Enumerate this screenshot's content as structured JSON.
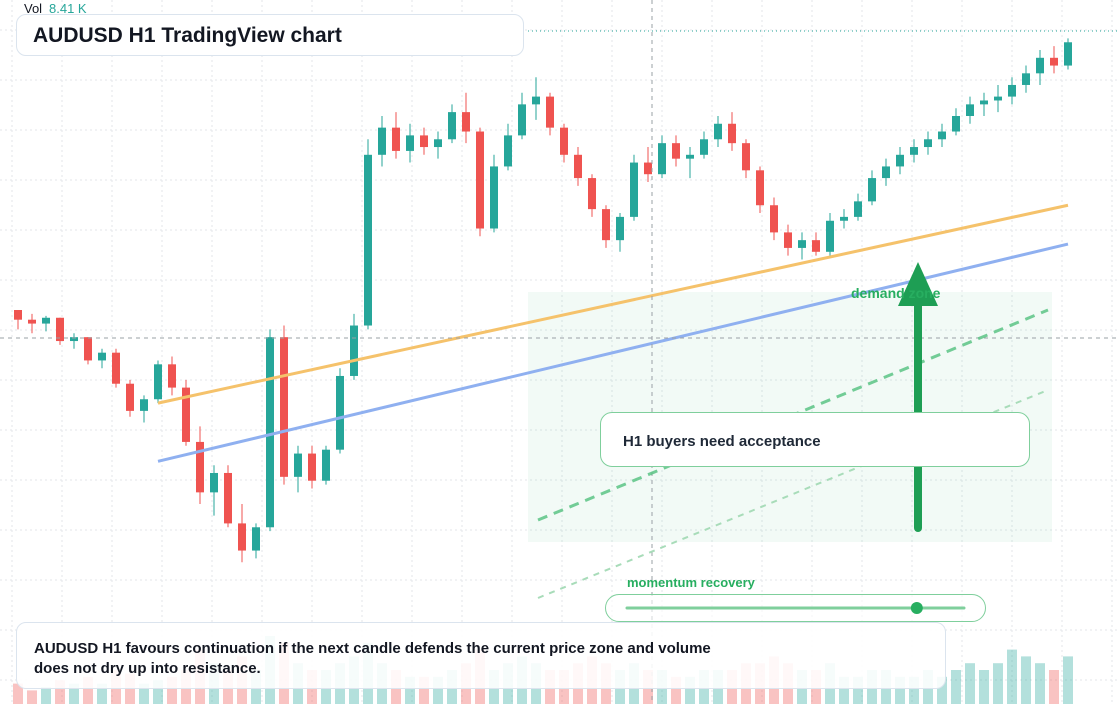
{
  "header": {
    "vol_label": "Vol",
    "vol_value": "8.41 K",
    "title": "AUDUSD H1 TradingView chart"
  },
  "annotations": {
    "note": "H1 buyers need acceptance",
    "zone_label": "demand zone",
    "momentum_label": "momentum recovery",
    "momentum_level": 0.86,
    "caption": "AUDUSD H1 favours continuation if the next candle defends the current price zone and volume does not dry up into resistance."
  },
  "colors": {
    "up": "#26a69a",
    "down": "#ef5350",
    "zone": "#27ae60",
    "trend_orange": "#f5c26b",
    "trend_blue": "#8fb0f0",
    "grid": "#e3e6ea"
  },
  "chart_data": {
    "type": "candlestick",
    "symbol": "AUDUSD",
    "timeframe": "H1",
    "candles_ohlc": [
      [
        0.5,
        0.5,
        0.4,
        0.45
      ],
      [
        0.45,
        0.48,
        0.38,
        0.43
      ],
      [
        0.43,
        0.47,
        0.39,
        0.46
      ],
      [
        0.46,
        0.46,
        0.32,
        0.34
      ],
      [
        0.34,
        0.38,
        0.3,
        0.36
      ],
      [
        0.36,
        0.36,
        0.22,
        0.24
      ],
      [
        0.24,
        0.3,
        0.2,
        0.28
      ],
      [
        0.28,
        0.3,
        0.1,
        0.12
      ],
      [
        0.12,
        0.14,
        -0.05,
        -0.02
      ],
      [
        -0.02,
        0.06,
        -0.08,
        0.04
      ],
      [
        0.04,
        0.24,
        0.02,
        0.22
      ],
      [
        0.22,
        0.26,
        0.06,
        0.1
      ],
      [
        0.1,
        0.14,
        -0.2,
        -0.18
      ],
      [
        -0.18,
        -0.1,
        -0.5,
        -0.44
      ],
      [
        -0.44,
        -0.3,
        -0.56,
        -0.34
      ],
      [
        -0.34,
        -0.3,
        -0.62,
        -0.6
      ],
      [
        -0.6,
        -0.5,
        -0.8,
        -0.74
      ],
      [
        -0.74,
        -0.6,
        -0.78,
        -0.62
      ],
      [
        -0.62,
        0.4,
        -0.64,
        0.36
      ],
      [
        0.36,
        0.42,
        -0.4,
        -0.36
      ],
      [
        -0.36,
        -0.2,
        -0.44,
        -0.24
      ],
      [
        -0.24,
        -0.2,
        -0.42,
        -0.38
      ],
      [
        -0.38,
        -0.2,
        -0.4,
        -0.22
      ],
      [
        -0.22,
        0.2,
        -0.24,
        0.16
      ],
      [
        0.16,
        0.48,
        0.14,
        0.42
      ],
      [
        0.42,
        1.38,
        0.4,
        1.3
      ],
      [
        1.3,
        1.5,
        1.24,
        1.44
      ],
      [
        1.44,
        1.52,
        1.28,
        1.32
      ],
      [
        1.32,
        1.46,
        1.26,
        1.4
      ],
      [
        1.4,
        1.44,
        1.3,
        1.34
      ],
      [
        1.34,
        1.42,
        1.28,
        1.38
      ],
      [
        1.38,
        1.56,
        1.36,
        1.52
      ],
      [
        1.52,
        1.62,
        1.36,
        1.42
      ],
      [
        1.42,
        1.44,
        0.88,
        0.92
      ],
      [
        0.92,
        1.3,
        0.9,
        1.24
      ],
      [
        1.24,
        1.46,
        1.22,
        1.4
      ],
      [
        1.4,
        1.62,
        1.38,
        1.56
      ],
      [
        1.56,
        1.7,
        1.48,
        1.6
      ],
      [
        1.6,
        1.62,
        1.4,
        1.44
      ],
      [
        1.44,
        1.46,
        1.26,
        1.3
      ],
      [
        1.3,
        1.34,
        1.14,
        1.18
      ],
      [
        1.18,
        1.2,
        0.98,
        1.02
      ],
      [
        1.02,
        1.04,
        0.82,
        0.86
      ],
      [
        0.86,
        1.0,
        0.8,
        0.98
      ],
      [
        0.98,
        1.3,
        0.96,
        1.26
      ],
      [
        1.26,
        1.34,
        1.16,
        1.2
      ],
      [
        1.2,
        1.4,
        1.18,
        1.36
      ],
      [
        1.36,
        1.4,
        1.24,
        1.28
      ],
      [
        1.28,
        1.34,
        1.18,
        1.3
      ],
      [
        1.3,
        1.42,
        1.28,
        1.38
      ],
      [
        1.38,
        1.5,
        1.34,
        1.46
      ],
      [
        1.46,
        1.52,
        1.32,
        1.36
      ],
      [
        1.36,
        1.38,
        1.18,
        1.22
      ],
      [
        1.22,
        1.24,
        1.0,
        1.04
      ],
      [
        1.04,
        1.08,
        0.86,
        0.9
      ],
      [
        0.9,
        0.94,
        0.78,
        0.82
      ],
      [
        0.82,
        0.9,
        0.76,
        0.86
      ],
      [
        0.86,
        0.9,
        0.78,
        0.8
      ],
      [
        0.8,
        1.0,
        0.78,
        0.96
      ],
      [
        0.96,
        1.02,
        0.92,
        0.98
      ],
      [
        0.98,
        1.1,
        0.96,
        1.06
      ],
      [
        1.06,
        1.22,
        1.04,
        1.18
      ],
      [
        1.18,
        1.28,
        1.14,
        1.24
      ],
      [
        1.24,
        1.34,
        1.2,
        1.3
      ],
      [
        1.3,
        1.38,
        1.26,
        1.34
      ],
      [
        1.34,
        1.42,
        1.3,
        1.38
      ],
      [
        1.38,
        1.46,
        1.34,
        1.42
      ],
      [
        1.42,
        1.54,
        1.4,
        1.5
      ],
      [
        1.5,
        1.6,
        1.46,
        1.56
      ],
      [
        1.56,
        1.62,
        1.5,
        1.58
      ],
      [
        1.58,
        1.66,
        1.52,
        1.6
      ],
      [
        1.6,
        1.7,
        1.56,
        1.66
      ],
      [
        1.66,
        1.76,
        1.62,
        1.72
      ],
      [
        1.72,
        1.84,
        1.66,
        1.8
      ],
      [
        1.8,
        1.86,
        1.72,
        1.76
      ],
      [
        1.76,
        1.9,
        1.74,
        1.88
      ]
    ],
    "volume": [
      0.3,
      0.2,
      0.25,
      0.35,
      0.3,
      0.4,
      0.3,
      0.5,
      0.45,
      0.3,
      0.35,
      0.4,
      0.5,
      0.8,
      0.6,
      0.5,
      0.7,
      0.5,
      1.0,
      0.9,
      0.6,
      0.5,
      0.5,
      0.6,
      0.7,
      0.9,
      0.6,
      0.5,
      0.4,
      0.4,
      0.4,
      0.5,
      0.6,
      0.8,
      0.5,
      0.6,
      0.7,
      0.6,
      0.5,
      0.5,
      0.6,
      0.7,
      0.6,
      0.5,
      0.6,
      0.5,
      0.5,
      0.4,
      0.4,
      0.5,
      0.5,
      0.5,
      0.6,
      0.6,
      0.7,
      0.6,
      0.5,
      0.5,
      0.6,
      0.4,
      0.4,
      0.5,
      0.5,
      0.4,
      0.4,
      0.5,
      0.4,
      0.5,
      0.6,
      0.5,
      0.6,
      0.8,
      0.7,
      0.6,
      0.5,
      0.7
    ],
    "trendlines": [
      {
        "from": [
          10,
          0.02
        ],
        "to": [
          75,
          1.04
        ]
      },
      {
        "from": [
          10,
          -0.28
        ],
        "to": [
          75,
          0.84
        ]
      }
    ]
  }
}
